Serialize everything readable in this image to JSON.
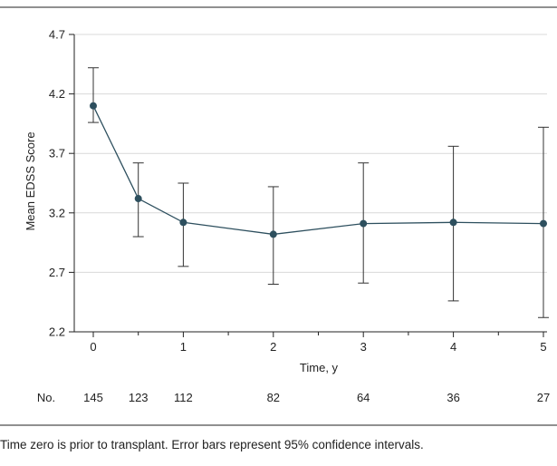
{
  "chart_data": {
    "type": "line",
    "ylabel": "Mean EDSS Score",
    "xlabel": "Time, y",
    "ylim": [
      2.2,
      4.7
    ],
    "xlim": [
      0,
      5
    ],
    "yticks": [
      2.2,
      2.7,
      3.2,
      3.7,
      4.2,
      4.7
    ],
    "xticks": [
      0,
      1,
      2,
      3,
      4,
      5
    ],
    "grid": "horizontal",
    "series": [
      {
        "x": [
          0,
          0.5,
          1,
          2,
          3,
          4,
          5
        ],
        "y": [
          4.1,
          3.32,
          3.12,
          3.02,
          3.11,
          3.12,
          3.11
        ],
        "ci_lower": [
          3.96,
          3.0,
          2.75,
          2.6,
          2.61,
          2.46,
          2.32
        ],
        "ci_upper": [
          4.42,
          3.62,
          3.45,
          3.42,
          3.62,
          3.76,
          3.92
        ],
        "color": "#2d4f5e"
      }
    ],
    "at_risk": {
      "label": "No.",
      "x": [
        0,
        0.5,
        1,
        2,
        3,
        4,
        5
      ],
      "counts": [
        "145",
        "123",
        "112",
        "82",
        "64",
        "36",
        "27"
      ]
    }
  },
  "caption": "Time zero is prior to transplant. Error bars represent 95% confidence intervals."
}
